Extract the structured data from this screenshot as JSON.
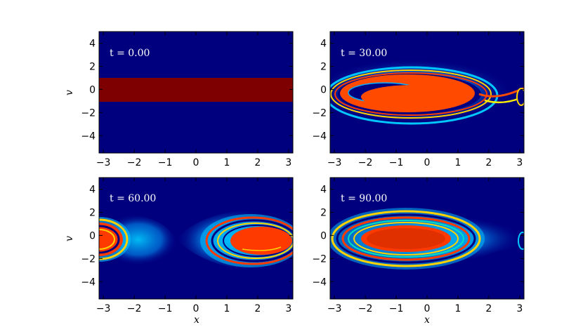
{
  "chart_data": [
    {
      "type": "heatmap",
      "label": "t=0.00",
      "xlabel": "",
      "ylabel": "v",
      "xlim": [
        -3.14,
        3.14
      ],
      "ylim": [
        -5.5,
        5
      ],
      "x_ticks": [
        "−3",
        "−2",
        "−1",
        "0",
        "1",
        "2",
        "3"
      ],
      "y_ticks": [
        "4",
        "2",
        "0",
        "−2",
        "−4"
      ],
      "band": {
        "v_min": -1.0,
        "v_max": 1.0,
        "color": "#7f0000"
      },
      "background": "#00007f"
    },
    {
      "type": "heatmap",
      "label": "t=30.00",
      "xlabel": "",
      "ylabel": "",
      "xlim": [
        -3.14,
        3.14
      ],
      "ylim": [
        -5.5,
        5
      ],
      "x_ticks": [
        "−3",
        "−2",
        "−1",
        "0",
        "1",
        "2",
        "3"
      ],
      "y_ticks": [
        "4",
        "2",
        "0",
        "−2",
        "−4"
      ],
      "vortex_center": {
        "x": -1.0,
        "v": 0.0
      },
      "background": "#00007f"
    },
    {
      "type": "heatmap",
      "label": "t=60.00",
      "xlabel": "x",
      "ylabel": "v",
      "xlim": [
        -3.14,
        3.14
      ],
      "ylim": [
        -5.5,
        5
      ],
      "x_ticks": [
        "−3",
        "−2",
        "−1",
        "0",
        "1",
        "2",
        "3"
      ],
      "y_ticks": [
        "4",
        "2",
        "0",
        "−2",
        "−4"
      ],
      "vortex_center": {
        "x": 2.3,
        "v": -0.3
      },
      "background": "#00007f"
    },
    {
      "type": "heatmap",
      "label": "t=90.00",
      "xlabel": "x",
      "ylabel": "",
      "xlim": [
        -3.14,
        3.14
      ],
      "ylim": [
        -5.5,
        5
      ],
      "x_ticks": [
        "−3",
        "−2",
        "−1",
        "0",
        "1",
        "2",
        "3"
      ],
      "y_ticks": [
        "4",
        "2",
        "0",
        "−2",
        "−4"
      ],
      "vortex_center": {
        "x": -1.0,
        "v": 0.0
      },
      "background": "#00007f"
    }
  ],
  "labels": {
    "p1": "t = 0.00",
    "p2": "t = 30.00",
    "p3": "t = 60.00",
    "p4": "t = 90.00",
    "ylabel_top": "v",
    "ylabel_bottom": "v",
    "xlabel_left": "x",
    "xlabel_right": "x"
  }
}
